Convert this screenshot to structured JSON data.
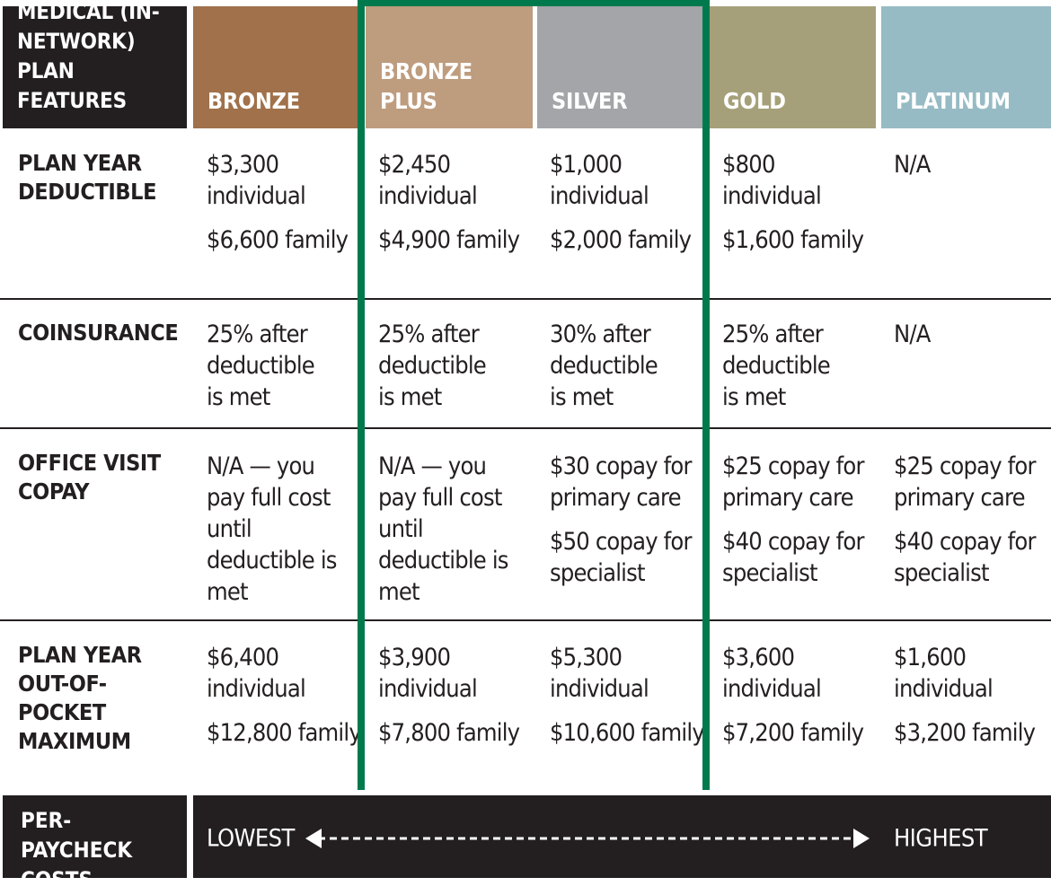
{
  "table": {
    "header_label": "MEDICAL (IN-NETWORK) PLAN FEATURES",
    "plans": [
      {
        "name": "BRONZE",
        "color": "#a0714a"
      },
      {
        "name": "BRONZE PLUS",
        "color": "#be9c7e"
      },
      {
        "name": "SILVER",
        "color": "#a3a5a8"
      },
      {
        "name": "GOLD",
        "color": "#a6a07a"
      },
      {
        "name": "PLATINUM",
        "color": "#97bbc4"
      }
    ],
    "rows": [
      {
        "label": "PLAN YEAR DEDUCTIBLE",
        "cells": [
          [
            "$3,300 individual",
            "$6,600 family"
          ],
          [
            "$2,450 individual",
            "$4,900 family"
          ],
          [
            "$1,000 individual",
            "$2,000 family"
          ],
          [
            "$800 individual",
            "$1,600 family"
          ],
          [
            "N/A"
          ]
        ]
      },
      {
        "label": "COINSURANCE",
        "cells": [
          [
            "25% after deductible is met"
          ],
          [
            "25% after deductible is met"
          ],
          [
            "30% after deductible is met"
          ],
          [
            "25% after deductible is met"
          ],
          [
            "N/A"
          ]
        ]
      },
      {
        "label": "OFFICE VISIT COPAY",
        "cells": [
          [
            "N/A — you pay full cost until deductible is met"
          ],
          [
            "N/A — you pay full cost until deductible is met"
          ],
          [
            "$30 copay for primary care",
            "$50 copay for specialist"
          ],
          [
            "$25 copay for primary care",
            "$40 copay for specialist"
          ],
          [
            "$25 copay for primary care",
            "$40 copay for specialist"
          ]
        ]
      },
      {
        "label": "PLAN YEAR OUT-OF-POCKET MAXIMUM",
        "cells": [
          [
            "$6,400 individual",
            "$12,800 family"
          ],
          [
            "$3,900 individual",
            "$7,800 family"
          ],
          [
            "$5,300 individual",
            "$10,600 family"
          ],
          [
            "$3,600 individual",
            "$7,200 family"
          ],
          [
            "$1,600 individual",
            "$3,200 family"
          ]
        ]
      }
    ],
    "footer": {
      "label": "PER-PAYCHECK COSTS",
      "low": "LOWEST",
      "high": "HIGHEST"
    },
    "highlight_color": "#007a4d"
  }
}
